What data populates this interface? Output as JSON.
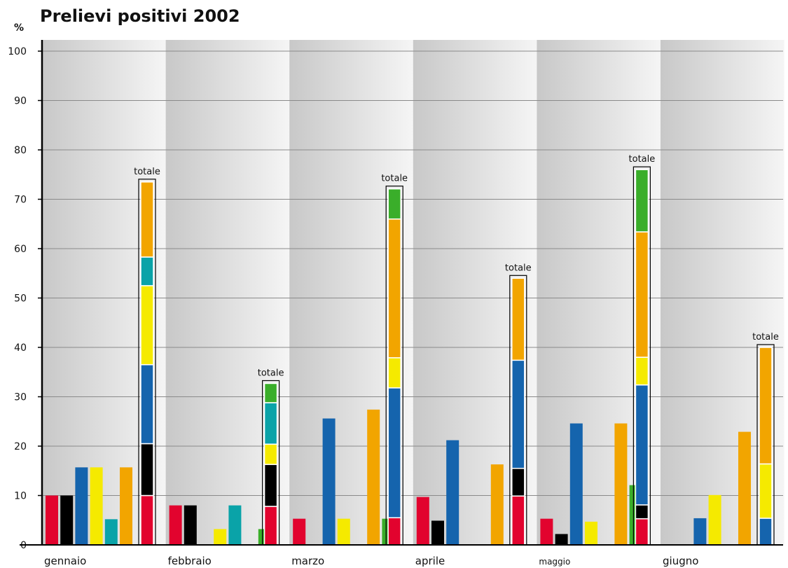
{
  "chart_data": {
    "type": "bar",
    "title": "Prelievi positivi 2002",
    "ylabel": "%",
    "ylim": [
      0,
      100
    ],
    "yticks": [
      0,
      10,
      20,
      30,
      40,
      50,
      60,
      70,
      80,
      90,
      100
    ],
    "grid": true,
    "stack_label": "totale",
    "colors": [
      "#e2032e",
      "#000000",
      "#1564ad",
      "#f5ea00",
      "#0aa3a8",
      "#f2a500",
      "#3aae2a"
    ],
    "categories": [
      "gennaio",
      "febbraio",
      "marzo",
      "aprile",
      "maggio",
      "giugno"
    ],
    "months": [
      {
        "name": "gennaio",
        "bars": [
          {
            "color": "#e2032e",
            "value": 10
          },
          {
            "color": "#000000",
            "value": 10
          },
          {
            "color": "#1564ad",
            "value": 15.7
          },
          {
            "color": "#f5ea00",
            "value": 15.7
          },
          {
            "color": "#0aa3a8",
            "value": 5.2
          },
          {
            "color": "#f2a500",
            "value": 15.7
          }
        ],
        "total": [
          {
            "color": "#e2032e",
            "value": 10
          },
          {
            "color": "#000000",
            "value": 10.5
          },
          {
            "color": "#1564ad",
            "value": 16
          },
          {
            "color": "#f5ea00",
            "value": 16
          },
          {
            "color": "#0aa3a8",
            "value": 5.8
          },
          {
            "color": "#f2a500",
            "value": 15.2
          }
        ]
      },
      {
        "name": "febbraio",
        "bars": [
          {
            "color": "#e2032e",
            "value": 8
          },
          {
            "color": "#000000",
            "value": 8
          },
          {
            "color": "#f5ea00",
            "value": 3.2
          },
          {
            "color": "#0aa3a8",
            "value": 8
          },
          {
            "color": "#3aae2a",
            "value": 3.2
          }
        ],
        "total": [
          {
            "color": "#e2032e",
            "value": 7.8
          },
          {
            "color": "#000000",
            "value": 8.5
          },
          {
            "color": "#f5ea00",
            "value": 4.1
          },
          {
            "color": "#0aa3a8",
            "value": 8.4
          },
          {
            "color": "#3aae2a",
            "value": 3.9
          }
        ]
      },
      {
        "name": "marzo",
        "bars": [
          {
            "color": "#e2032e",
            "value": 5.3
          },
          {
            "color": "#1564ad",
            "value": 25.6
          },
          {
            "color": "#f5ea00",
            "value": 5.3
          },
          {
            "color": "#f2a500",
            "value": 27.4
          },
          {
            "color": "#3aae2a",
            "value": 5.3
          }
        ],
        "total": [
          {
            "color": "#e2032e",
            "value": 5.5
          },
          {
            "color": "#1564ad",
            "value": 26.3
          },
          {
            "color": "#f5ea00",
            "value": 6.1
          },
          {
            "color": "#f2a500",
            "value": 28.1
          },
          {
            "color": "#3aae2a",
            "value": 6.1
          }
        ]
      },
      {
        "name": "aprile",
        "bars": [
          {
            "color": "#e2032e",
            "value": 9.7
          },
          {
            "color": "#000000",
            "value": 4.9
          },
          {
            "color": "#1564ad",
            "value": 21.2
          },
          {
            "color": "#f2a500",
            "value": 16.3
          }
        ],
        "total": [
          {
            "color": "#e2032e",
            "value": 9.9
          },
          {
            "color": "#000000",
            "value": 5.6
          },
          {
            "color": "#1564ad",
            "value": 21.9
          },
          {
            "color": "#f2a500",
            "value": 16.6
          }
        ]
      },
      {
        "name": "maggio",
        "bars": [
          {
            "color": "#e2032e",
            "value": 5.3
          },
          {
            "color": "#000000",
            "value": 2.2
          },
          {
            "color": "#1564ad",
            "value": 24.6
          },
          {
            "color": "#f5ea00",
            "value": 4.7
          },
          {
            "color": "#f2a500",
            "value": 24.6
          },
          {
            "color": "#3aae2a",
            "value": 12.1
          }
        ],
        "total": [
          {
            "color": "#e2032e",
            "value": 5.3
          },
          {
            "color": "#000000",
            "value": 2.8
          },
          {
            "color": "#1564ad",
            "value": 24.3
          },
          {
            "color": "#f5ea00",
            "value": 5.6
          },
          {
            "color": "#f2a500",
            "value": 25.4
          },
          {
            "color": "#3aae2a",
            "value": 12.6
          }
        ]
      },
      {
        "name": "giugno",
        "bars": [
          {
            "color": "#1564ad",
            "value": 5.4
          },
          {
            "color": "#f5ea00",
            "value": 10.1
          },
          {
            "color": "#f2a500",
            "value": 22.9
          }
        ],
        "total": [
          {
            "color": "#1564ad",
            "value": 5.4
          },
          {
            "color": "#f5ea00",
            "value": 11
          },
          {
            "color": "#f2a500",
            "value": 23.6
          }
        ]
      }
    ]
  }
}
